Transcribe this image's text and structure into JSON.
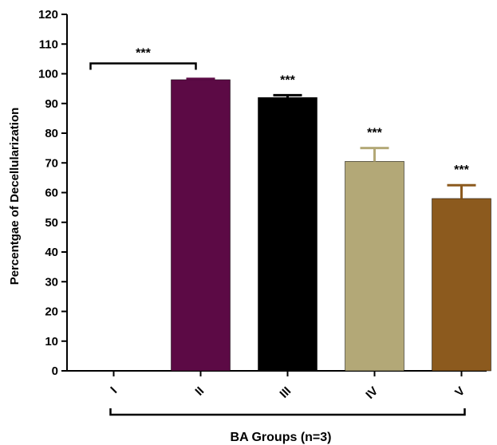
{
  "chart_data": {
    "type": "bar",
    "categories": [
      "I",
      "II",
      "III",
      "IV",
      "V"
    ],
    "values": [
      0,
      98,
      92,
      70.5,
      58
    ],
    "errors": [
      0,
      0.3,
      0.8,
      4.5,
      4.5
    ],
    "colors": [
      "#ffffff",
      "#5c0a45",
      "#000000",
      "#b3a877",
      "#8c5a1e"
    ],
    "significance": [
      "***",
      "***",
      "***",
      "***",
      "***"
    ],
    "xlabel": "BA Groups (n=3)",
    "ylabel": "Percentgae of Decellularization",
    "ylim": [
      0,
      120
    ],
    "yticks": [
      0,
      10,
      20,
      30,
      40,
      50,
      60,
      70,
      80,
      90,
      100,
      110,
      120
    ],
    "grid": false,
    "legend": "none"
  }
}
